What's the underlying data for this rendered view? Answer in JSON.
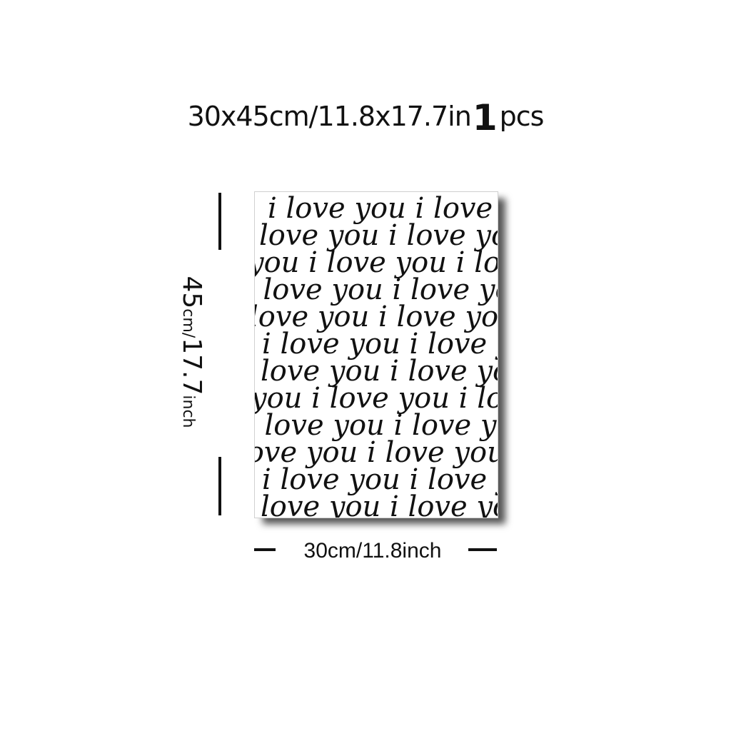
{
  "title": {
    "size_text": "30x45cm/11.8x17.7in",
    "quantity_number": "1",
    "quantity_unit": "pcs"
  },
  "height_dimension": {
    "number": "45",
    "unit1": "cm/",
    "number2": "17.7",
    "unit2": "inch"
  },
  "width_dimension": {
    "label": "30cm/11.8inch"
  },
  "poster": {
    "pattern_text": "i love you",
    "ink_color": "#111111",
    "background_color": "#ffffff",
    "lines": [
      "i love you i love you",
      "love you i love you i",
      "you i love you i love",
      "i love you i love you",
      "love you i love you i",
      "i love you i love you",
      "love you i love you i",
      "you i love you i love",
      "i love you i love you",
      "love you i love you i",
      "i love you i love you",
      "love you i love you i"
    ]
  }
}
